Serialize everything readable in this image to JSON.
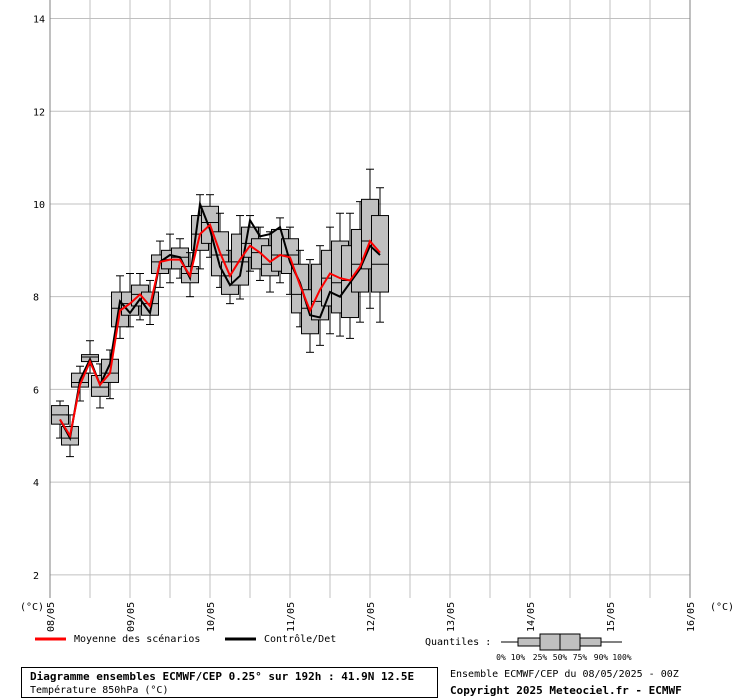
{
  "chart_data": {
    "type": "boxplot",
    "y_unit_left": "(°C)",
    "y_unit_right": "(°C)",
    "ylim": [
      1.5,
      14.4
    ],
    "yticks": [
      2,
      4,
      6,
      8,
      10,
      12,
      14
    ],
    "xtick_labels": [
      "08/05",
      "09/05",
      "10/05",
      "11/05",
      "12/05",
      "13/05",
      "14/05",
      "15/05",
      "16/05"
    ],
    "x_days_span": [
      0,
      8
    ],
    "grid": true,
    "boxes": [
      {
        "t": 0.125,
        "p10": 4.95,
        "p25": 5.25,
        "p50": 5.45,
        "p75": 5.65,
        "p90": 5.75
      },
      {
        "t": 0.25,
        "p10": 4.55,
        "p25": 4.8,
        "p50": 4.95,
        "p75": 5.2,
        "p90": 5.45
      },
      {
        "t": 0.375,
        "p10": 5.75,
        "p25": 6.05,
        "p50": 6.15,
        "p75": 6.35,
        "p90": 6.5
      },
      {
        "t": 0.5,
        "p10": 6.35,
        "p25": 6.6,
        "p50": 6.7,
        "p75": 6.75,
        "p90": 7.05
      },
      {
        "t": 0.625,
        "p10": 5.6,
        "p25": 5.85,
        "p50": 6.05,
        "p75": 6.3,
        "p90": 6.55
      },
      {
        "t": 0.75,
        "p10": 5.8,
        "p25": 6.15,
        "p50": 6.35,
        "p75": 6.65,
        "p90": 6.85
      },
      {
        "t": 0.875,
        "p10": 7.1,
        "p25": 7.35,
        "p50": 7.75,
        "p75": 8.1,
        "p90": 8.45
      },
      {
        "t": 1.0,
        "p10": 7.35,
        "p25": 7.6,
        "p50": 7.85,
        "p75": 8.1,
        "p90": 8.5
      },
      {
        "t": 1.125,
        "p10": 7.5,
        "p25": 7.8,
        "p50": 8.05,
        "p75": 8.25,
        "p90": 8.5
      },
      {
        "t": 1.25,
        "p10": 7.4,
        "p25": 7.6,
        "p50": 7.85,
        "p75": 8.1,
        "p90": 8.35
      },
      {
        "t": 1.375,
        "p10": 8.2,
        "p25": 8.5,
        "p50": 8.75,
        "p75": 8.9,
        "p90": 9.2
      },
      {
        "t": 1.5,
        "p10": 8.3,
        "p25": 8.6,
        "p50": 8.8,
        "p75": 9.0,
        "p90": 9.35
      },
      {
        "t": 1.625,
        "p10": 8.4,
        "p25": 8.6,
        "p50": 8.85,
        "p75": 9.05,
        "p90": 9.25
      },
      {
        "t": 1.75,
        "p10": 8.0,
        "p25": 8.3,
        "p50": 8.5,
        "p75": 8.65,
        "p90": 8.95
      },
      {
        "t": 1.875,
        "p10": 8.6,
        "p25": 9.0,
        "p50": 9.35,
        "p75": 9.75,
        "p90": 10.2
      },
      {
        "t": 2.0,
        "p10": 8.85,
        "p25": 9.15,
        "p50": 9.6,
        "p75": 9.95,
        "p90": 10.2
      },
      {
        "t": 2.125,
        "p10": 8.2,
        "p25": 8.45,
        "p50": 8.9,
        "p75": 9.4,
        "p90": 9.8
      },
      {
        "t": 2.25,
        "p10": 7.85,
        "p25": 8.05,
        "p50": 8.45,
        "p75": 8.75,
        "p90": 9.0
      },
      {
        "t": 2.375,
        "p10": 7.95,
        "p25": 8.25,
        "p50": 8.75,
        "p75": 9.35,
        "p90": 9.75
      },
      {
        "t": 2.5,
        "p10": 8.55,
        "p25": 8.85,
        "p50": 9.15,
        "p75": 9.5,
        "p90": 9.75
      },
      {
        "t": 2.625,
        "p10": 8.35,
        "p25": 8.6,
        "p50": 8.95,
        "p75": 9.25,
        "p90": 9.5
      },
      {
        "t": 2.75,
        "p10": 8.1,
        "p25": 8.45,
        "p50": 8.7,
        "p75": 9.1,
        "p90": 9.4
      },
      {
        "t": 2.875,
        "p10": 8.3,
        "p25": 8.55,
        "p50": 8.9,
        "p75": 9.45,
        "p90": 9.7
      },
      {
        "t": 3.0,
        "p10": 8.05,
        "p25": 8.5,
        "p50": 8.9,
        "p75": 9.25,
        "p90": 9.5
      },
      {
        "t": 3.125,
        "p10": 7.35,
        "p25": 7.65,
        "p50": 8.05,
        "p75": 8.7,
        "p90": 9.0
      },
      {
        "t": 3.25,
        "p10": 6.8,
        "p25": 7.2,
        "p50": 7.75,
        "p75": 8.15,
        "p90": 8.8
      },
      {
        "t": 3.375,
        "p10": 6.95,
        "p25": 7.5,
        "p50": 7.9,
        "p75": 8.7,
        "p90": 9.1
      },
      {
        "t": 3.5,
        "p10": 7.2,
        "p25": 7.8,
        "p50": 8.4,
        "p75": 9.0,
        "p90": 9.5
      },
      {
        "t": 3.625,
        "p10": 7.15,
        "p25": 7.65,
        "p50": 8.3,
        "p75": 9.2,
        "p90": 9.8
      },
      {
        "t": 3.75,
        "p10": 7.1,
        "p25": 7.55,
        "p50": 8.35,
        "p75": 9.1,
        "p90": 9.8
      },
      {
        "t": 3.875,
        "p10": 7.45,
        "p25": 8.1,
        "p50": 8.7,
        "p75": 9.45,
        "p90": 10.05
      },
      {
        "t": 4.0,
        "p10": 7.75,
        "p25": 8.6,
        "p50": 9.2,
        "p75": 10.1,
        "p90": 10.75
      },
      {
        "t": 4.125,
        "p10": 7.45,
        "p25": 8.1,
        "p50": 8.7,
        "p75": 9.75,
        "p90": 10.35
      }
    ],
    "series": [
      {
        "name": "Moyenne des scénarios",
        "color": "#ff0000",
        "values": [
          5.35,
          5.0,
          6.1,
          6.6,
          6.1,
          6.35,
          7.7,
          7.85,
          8.05,
          7.8,
          8.75,
          8.8,
          8.8,
          8.45,
          9.35,
          9.55,
          8.95,
          8.45,
          8.8,
          9.1,
          8.95,
          8.75,
          8.9,
          8.85,
          8.25,
          7.7,
          8.15,
          8.5,
          8.4,
          8.35,
          8.65,
          9.2,
          8.95
        ]
      },
      {
        "name": "Contrôle/Det",
        "color": "#000000",
        "values": [
          5.35,
          4.95,
          6.2,
          6.65,
          6.1,
          6.55,
          7.9,
          7.65,
          7.95,
          7.65,
          8.75,
          8.9,
          8.85,
          8.4,
          10.0,
          9.45,
          8.65,
          8.25,
          8.45,
          9.65,
          9.3,
          9.35,
          9.5,
          8.75,
          8.3,
          7.6,
          7.55,
          8.1,
          8.0,
          8.3,
          8.6,
          9.1,
          8.9
        ]
      }
    ],
    "legend": {
      "mean_label": "Moyenne des scénarios",
      "control_label": "Contrôle/Det",
      "quantiles_label": "Quantiles :",
      "quantile_ticks": [
        "0%",
        "10%",
        "25%",
        "50%",
        "75%",
        "90%",
        "100%"
      ]
    },
    "colors": {
      "box_fill": "#c0c0c0",
      "grid": "#c0c0c0",
      "mean_line": "#ff0000",
      "control_line": "#000000"
    }
  },
  "footer": {
    "title": "Diagramme ensembles ECMWF/CEP 0.25° sur 192h : 41.9N 12.5E",
    "subtitle": "Température 850hPa (°C)",
    "run_info": "Ensemble ECMWF/CEP du 08/05/2025 - 00Z",
    "copyright": "Copyright 2025 Meteociel.fr - ECMWF"
  }
}
